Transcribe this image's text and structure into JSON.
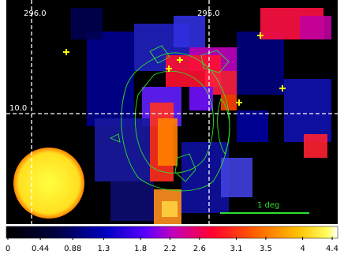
{
  "sky_map": {
    "ra_labels": [
      "296.0",
      "295.0"
    ],
    "dec_labels": [
      "10.0"
    ],
    "scale_bar": "1 deg"
  },
  "colorbar": {
    "ticks": [
      0,
      0.44,
      0.88,
      1.3,
      1.8,
      2.2,
      2.6,
      3.1,
      3.5,
      4,
      4.4
    ]
  }
}
